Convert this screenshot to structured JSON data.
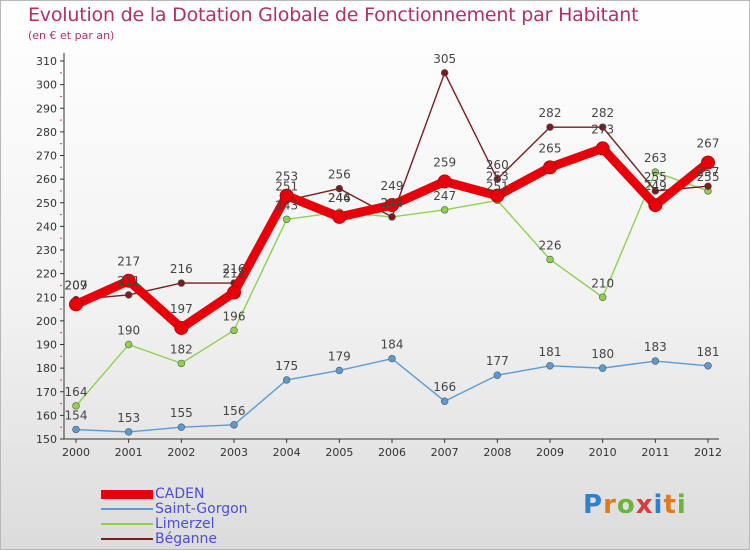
{
  "title": "Evolution de la Dotation Globale de Fonctionnement par Habitant",
  "subtitle": "(en € et par an)",
  "brand": {
    "letters": [
      "P",
      "r",
      "o",
      "x",
      "i",
      "t",
      "i"
    ],
    "colors": [
      "#2f7fd0",
      "#e07a1f",
      "#6cb33f",
      "#d63e3e",
      "#2f7fd0",
      "#e07a1f",
      "#6cb33f"
    ]
  },
  "chart_data": {
    "type": "line",
    "x": [
      "2000",
      "2001",
      "2002",
      "2003",
      "2004",
      "2005",
      "2006",
      "2007",
      "2008",
      "2009",
      "2010",
      "2011",
      "2012"
    ],
    "ylim": [
      150,
      310
    ],
    "yticks": [
      150,
      160,
      170,
      180,
      190,
      200,
      210,
      220,
      230,
      240,
      250,
      260,
      270,
      280,
      290,
      300,
      310
    ],
    "grid": false,
    "legend_position": "bottom-left",
    "series": [
      {
        "name": "CADEN",
        "color": "#e8000a",
        "values": [
          207,
          217,
          197,
          212,
          253,
          244,
          249,
          259,
          253,
          265,
          273,
          249,
          267
        ]
      },
      {
        "name": "Saint-Gorgon",
        "color": "#5b9bd5",
        "values": [
          154,
          153,
          155,
          156,
          175,
          179,
          184,
          166,
          177,
          181,
          180,
          183,
          181
        ]
      },
      {
        "name": "Limerzel",
        "color": "#8fd14f",
        "values": [
          164,
          190,
          182,
          196,
          243,
          246,
          244,
          247,
          251,
          226,
          210,
          263,
          255
        ]
      },
      {
        "name": "Béganne",
        "color": "#7a1c1c",
        "values": [
          209,
          211,
          216,
          216,
          251,
          256,
          244,
          305,
          260,
          282,
          282,
          255,
          257
        ]
      }
    ]
  }
}
